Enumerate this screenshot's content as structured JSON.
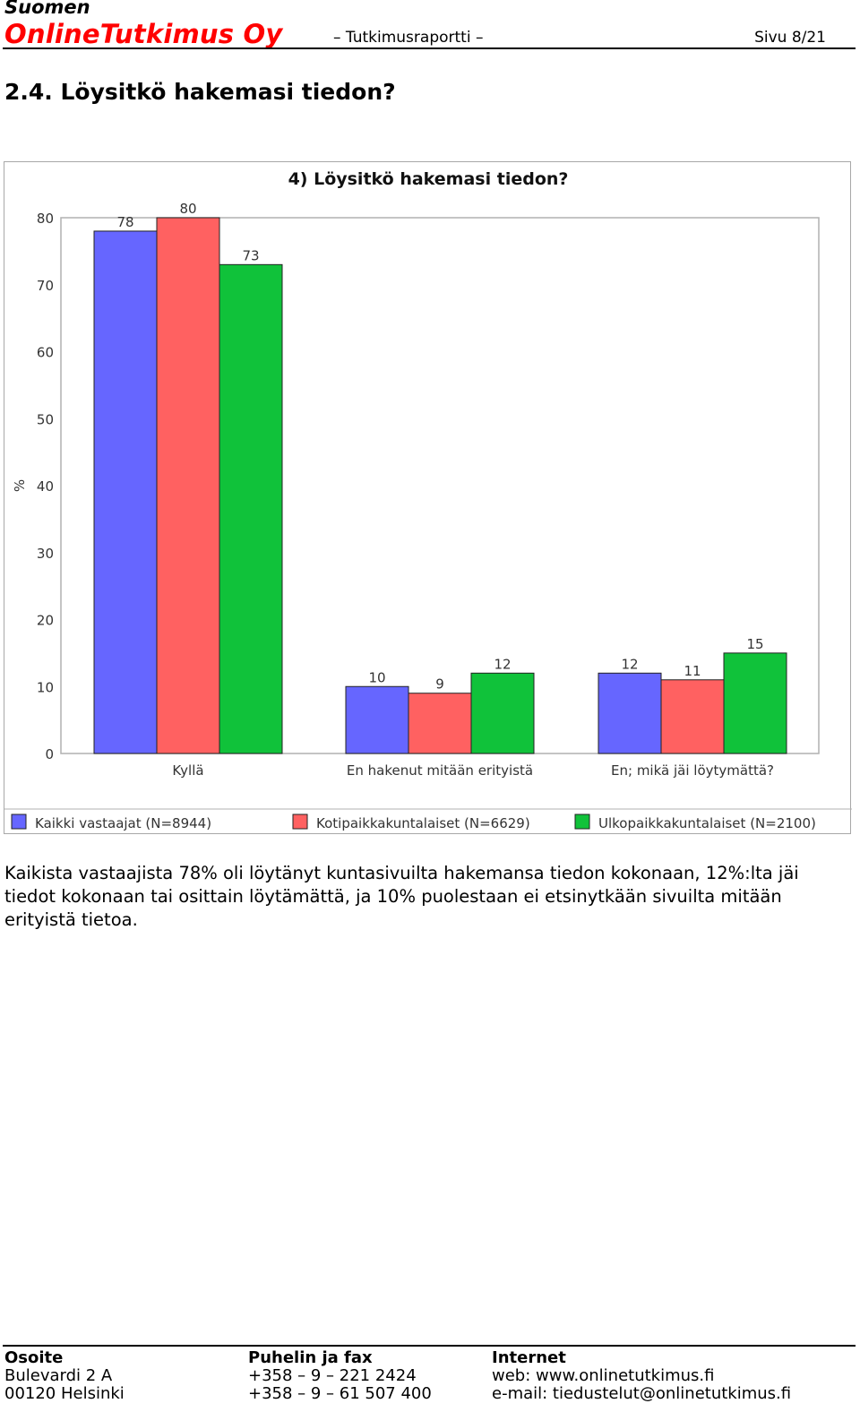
{
  "header": {
    "brand_top": "Suomen",
    "brand_main": "OnlineTutkimus Oy",
    "doc_type": "– Tutkimusraportti –",
    "page": "Sivu 8/21"
  },
  "section_title": "2.4. Löysitkö hakemasi tiedon?",
  "chart_data": {
    "type": "bar",
    "title": "4) Löysitkö hakemasi tiedon?",
    "ylabel": "%",
    "xlabel": "",
    "ylim": [
      0,
      80
    ],
    "yticks": [
      0,
      10,
      20,
      30,
      40,
      50,
      60,
      70,
      80
    ],
    "grid": "horizontal top line only",
    "legend_position": "bottom",
    "categories": [
      "Kyllä",
      "En hakenut mitään erityistä",
      "En; mikä jäi löytymättä?"
    ],
    "series": [
      {
        "name": "Kaikki vastaajat (N=8944)",
        "color": "#6666ff",
        "values": [
          78,
          10,
          12
        ]
      },
      {
        "name": "Kotipaikkakuntalaiset (N=6629)",
        "color": "#ff6161",
        "values": [
          80,
          9,
          11
        ]
      },
      {
        "name": "Ulkopaikkakuntalaiset (N=2100)",
        "color": "#10c23a",
        "values": [
          73,
          12,
          15
        ]
      }
    ]
  },
  "body_text": "Kaikista vastaajista 78% oli löytänyt kuntasivuilta hakemansa tiedon kokonaan, 12%:lta jäi tiedot kokonaan tai osittain löytämättä, ja 10% puolestaan ei etsinytkään sivuilta mitään erityistä tietoa.",
  "footer": {
    "address": {
      "heading": "Osoite",
      "line1": "Bulevardi 2 A",
      "line2": "00120 Helsinki"
    },
    "phone": {
      "heading": "Puhelin ja fax",
      "line1": "+358 – 9 – 221 2424",
      "line2": "+358 – 9 – 61 507 400"
    },
    "internet": {
      "heading": "Internet",
      "line1": "web: www.onlinetutkimus.fi",
      "line2": "e-mail: tiedustelut@onlinetutkimus.fi"
    }
  }
}
